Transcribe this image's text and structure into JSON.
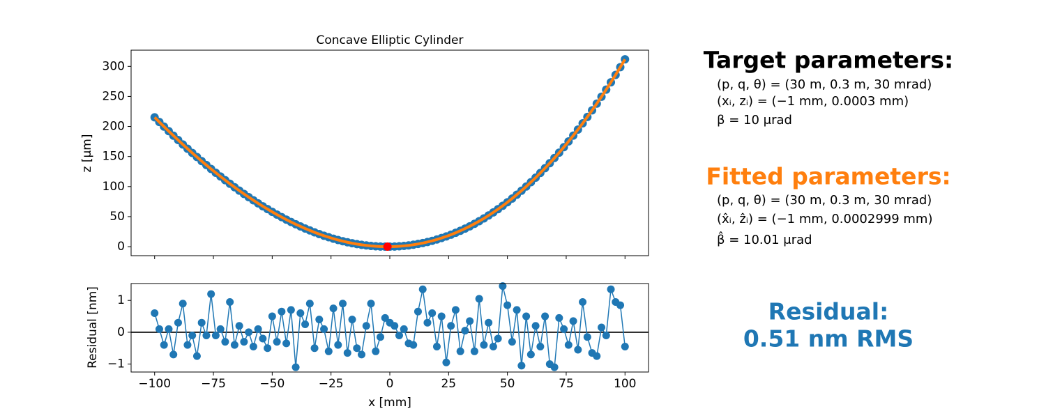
{
  "chart_data": [
    {
      "type": "line",
      "title": "Concave Elliptic Cylinder",
      "ylabel": "z [µm]",
      "x": [
        -100,
        -98,
        -96,
        -94,
        -92,
        -90,
        -88,
        -86,
        -84,
        -82,
        -80,
        -78,
        -76,
        -74,
        -72,
        -70,
        -68,
        -66,
        -64,
        -62,
        -60,
        -58,
        -56,
        -54,
        -52,
        -50,
        -48,
        -46,
        -44,
        -42,
        -40,
        -38,
        -36,
        -34,
        -32,
        -30,
        -28,
        -26,
        -24,
        -22,
        -20,
        -18,
        -16,
        -14,
        -12,
        -10,
        -8,
        -6,
        -4,
        -2,
        0,
        2,
        4,
        6,
        8,
        10,
        12,
        14,
        16,
        18,
        20,
        22,
        24,
        26,
        28,
        30,
        32,
        34,
        36,
        38,
        40,
        42,
        44,
        46,
        48,
        50,
        52,
        54,
        56,
        58,
        60,
        62,
        64,
        66,
        68,
        70,
        72,
        74,
        76,
        78,
        80,
        82,
        84,
        86,
        88,
        90,
        92,
        94,
        96,
        98,
        100
      ],
      "series": [
        {
          "color": "#1f77b4",
          "fit_color": "#ff7f0e",
          "values": [
            215.2,
            207.4,
            199.7,
            192.2,
            184.7,
            177.4,
            170.1,
            163.0,
            156.0,
            149.2,
            142.4,
            135.8,
            129.3,
            123.0,
            116.8,
            110.7,
            104.7,
            98.9,
            93.3,
            87.8,
            82.4,
            77.2,
            72.1,
            67.2,
            62.5,
            57.9,
            53.4,
            49.2,
            45.0,
            41.1,
            37.3,
            33.7,
            30.2,
            27.0,
            23.9,
            21.0,
            18.2,
            15.7,
            13.3,
            11.1,
            9.1,
            7.3,
            5.7,
            4.3,
            3.1,
            2.1,
            1.2,
            0.6,
            0.2,
            0.0,
            0.0,
            0.2,
            0.6,
            1.3,
            2.1,
            3.2,
            4.5,
            6.0,
            7.8,
            9.7,
            11.9,
            14.4,
            17.0,
            19.9,
            23.1,
            26.5,
            30.1,
            33.9,
            38.1,
            42.4,
            47.0,
            51.9,
            57.0,
            62.4,
            68.0,
            73.9,
            80.0,
            86.5,
            93.1,
            100.1,
            107.3,
            114.8,
            122.6,
            130.6,
            138.9,
            147.6,
            156.4,
            165.6,
            175.1,
            184.8,
            194.9,
            205.2,
            215.9,
            226.8,
            238.0,
            249.5,
            261.4,
            273.5,
            285.9,
            298.7,
            311.8
          ]
        }
      ],
      "vertex": {
        "x": -1,
        "y": 0,
        "color": "#ff0000"
      },
      "xlim": [
        -110,
        110
      ],
      "ylim": [
        -15,
        327
      ],
      "yticks": [
        0,
        50,
        100,
        150,
        200,
        250,
        300
      ]
    },
    {
      "type": "line",
      "xlabel": "x [mm]",
      "ylabel": "Residual [nm]",
      "x": [
        -100,
        -98,
        -96,
        -94,
        -92,
        -90,
        -88,
        -86,
        -84,
        -82,
        -80,
        -78,
        -76,
        -74,
        -72,
        -70,
        -68,
        -66,
        -64,
        -62,
        -60,
        -58,
        -56,
        -54,
        -52,
        -50,
        -48,
        -46,
        -44,
        -42,
        -40,
        -38,
        -36,
        -34,
        -32,
        -30,
        -28,
        -26,
        -24,
        -22,
        -20,
        -18,
        -16,
        -14,
        -12,
        -10,
        -8,
        -6,
        -4,
        -2,
        0,
        2,
        4,
        6,
        8,
        10,
        12,
        14,
        16,
        18,
        20,
        22,
        24,
        26,
        28,
        30,
        32,
        34,
        36,
        38,
        40,
        42,
        44,
        46,
        48,
        50,
        52,
        54,
        56,
        58,
        60,
        62,
        64,
        66,
        68,
        70,
        72,
        74,
        76,
        78,
        80,
        82,
        84,
        86,
        88,
        90,
        92,
        94,
        96,
        98,
        100
      ],
      "series": [
        {
          "color": "#1f77b4",
          "values": [
            0.6,
            0.1,
            -0.4,
            0.1,
            -0.7,
            0.3,
            0.9,
            -0.4,
            -0.1,
            -0.75,
            0.3,
            -0.1,
            1.2,
            -0.1,
            0.1,
            -0.3,
            0.95,
            -0.4,
            0.2,
            -0.3,
            0.0,
            -0.45,
            0.1,
            -0.2,
            -0.5,
            0.5,
            -0.3,
            0.65,
            -0.35,
            0.7,
            -1.1,
            0.6,
            0.25,
            0.9,
            -0.5,
            0.4,
            0.1,
            -0.6,
            0.75,
            -0.4,
            0.9,
            -0.65,
            0.4,
            -0.5,
            -0.7,
            0.2,
            0.9,
            -0.6,
            -0.15,
            0.45,
            0.3,
            0.2,
            -0.1,
            0.1,
            -0.35,
            -0.4,
            0.65,
            1.35,
            0.3,
            0.6,
            -0.45,
            0.5,
            -0.95,
            0.2,
            0.7,
            -0.6,
            0.05,
            0.35,
            -0.6,
            1.05,
            -0.4,
            0.3,
            -0.45,
            -0.2,
            1.45,
            0.85,
            -0.3,
            0.7,
            -1.05,
            0.5,
            -0.7,
            0.2,
            -0.45,
            0.5,
            -1.0,
            -1.1,
            0.45,
            0.1,
            -0.4,
            0.35,
            -0.55,
            0.95,
            -0.15,
            -0.65,
            -0.75,
            0.15,
            -0.1,
            1.35,
            0.95,
            0.85,
            -0.45
          ]
        }
      ],
      "hline": 0,
      "xlim": [
        -110,
        110
      ],
      "ylim": [
        -1.25,
        1.53
      ],
      "xticks": [
        {
          "value": -100,
          "label": "−100"
        },
        {
          "value": -75,
          "label": "−75"
        },
        {
          "value": -50,
          "label": "−50"
        },
        {
          "value": -25,
          "label": "−25"
        },
        0,
        25,
        50,
        75,
        100
      ],
      "yticks": [
        {
          "value": -1,
          "label": "−1"
        },
        0,
        1
      ]
    }
  ],
  "side_text": {
    "target_title": "Target parameters:",
    "target_lines": [
      "(p, q, θ) = (30 m, 0.3 m, 30 mrad)",
      "(xᵢ, zᵢ) = (−1 mm, 0.0003 mm)",
      "β = 10 μrad"
    ],
    "fitted_title": "Fitted parameters:",
    "fitted_lines": [
      "(p, q, θ) = (30 m, 0.3 m, 30 mrad)",
      "(x̂ᵢ, ẑᵢ) = (−1 mm, 0.0002999 mm)",
      "β̂ = 10.01 μrad"
    ],
    "residual_lines": [
      "Residual:",
      "0.51 nm RMS"
    ]
  }
}
